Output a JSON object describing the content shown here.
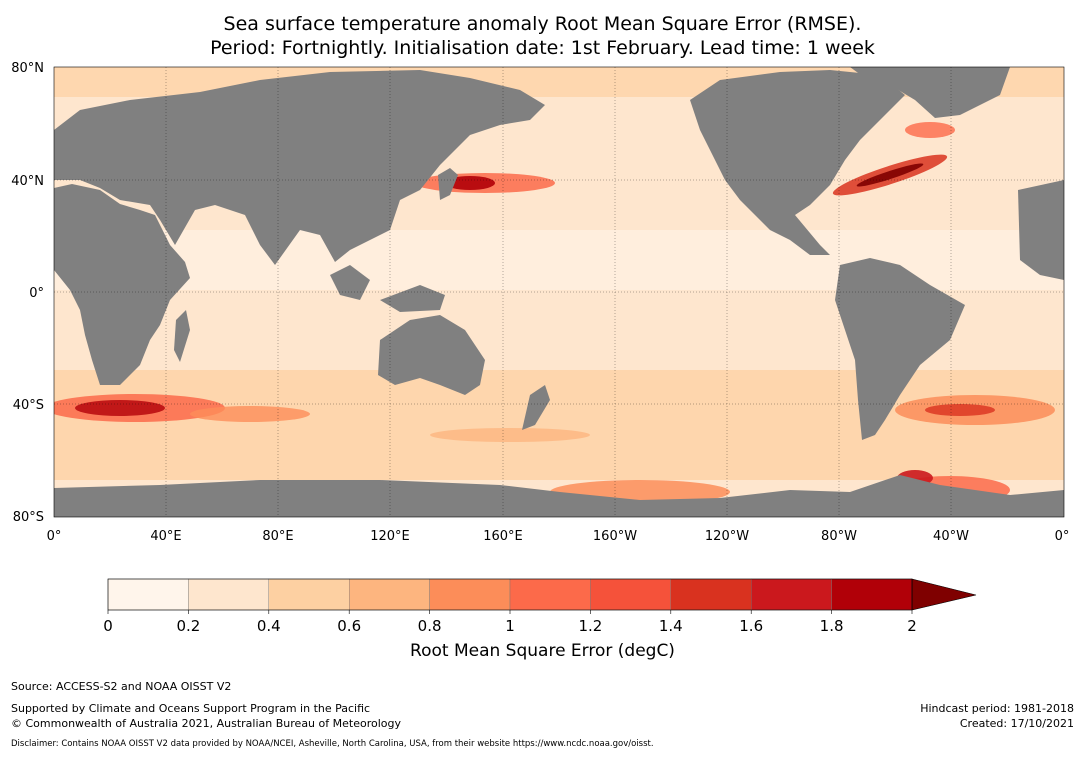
{
  "title": {
    "line1": "Sea surface temperature anomaly Root Mean Square Error (RMSE).",
    "line2": "Period: Fortnightly. Initialisation date: 1st February. Lead time: 1 week"
  },
  "map": {
    "lat_labels": [
      "80°N",
      "40°N",
      "0°",
      "40°S",
      "80°S"
    ],
    "lon_labels": [
      "0°",
      "40°E",
      "80°E",
      "120°E",
      "160°E",
      "160°W",
      "120°W",
      "80°W",
      "40°W",
      "0°"
    ],
    "land_color": "#808080",
    "ocean_base_color": "#fee6ce"
  },
  "colorbar": {
    "ticks": [
      "0",
      "0.2",
      "0.4",
      "0.6",
      "0.8",
      "1",
      "1.2",
      "1.4",
      "1.6",
      "1.8",
      "2"
    ],
    "colors": [
      "#fff5eb",
      "#fee6ce",
      "#fdd0a2",
      "#fdb57f",
      "#fc8d59",
      "#fc6a4a",
      "#f5523a",
      "#d9321f",
      "#cb181d",
      "#b10008"
    ],
    "extend_color": "#7f0000",
    "label": "Root Mean Square Error (degC)"
  },
  "footer": {
    "source": "Source: ACCESS-S2 and NOAA OISST V2",
    "support": "Supported by Climate and Oceans Support Program in the Pacific",
    "copyright": "© Commonwealth of Australia 2021, Australian Bureau of Meteorology",
    "hindcast": "Hindcast period: 1981-2018",
    "created": "Created: 17/10/2021",
    "disclaimer": "Disclaimer: Contains NOAA OISST V2 data provided by NOAA/NCEI, Asheville, North Carolina, USA, from their website https://www.ncdc.noaa.gov/oisst."
  }
}
